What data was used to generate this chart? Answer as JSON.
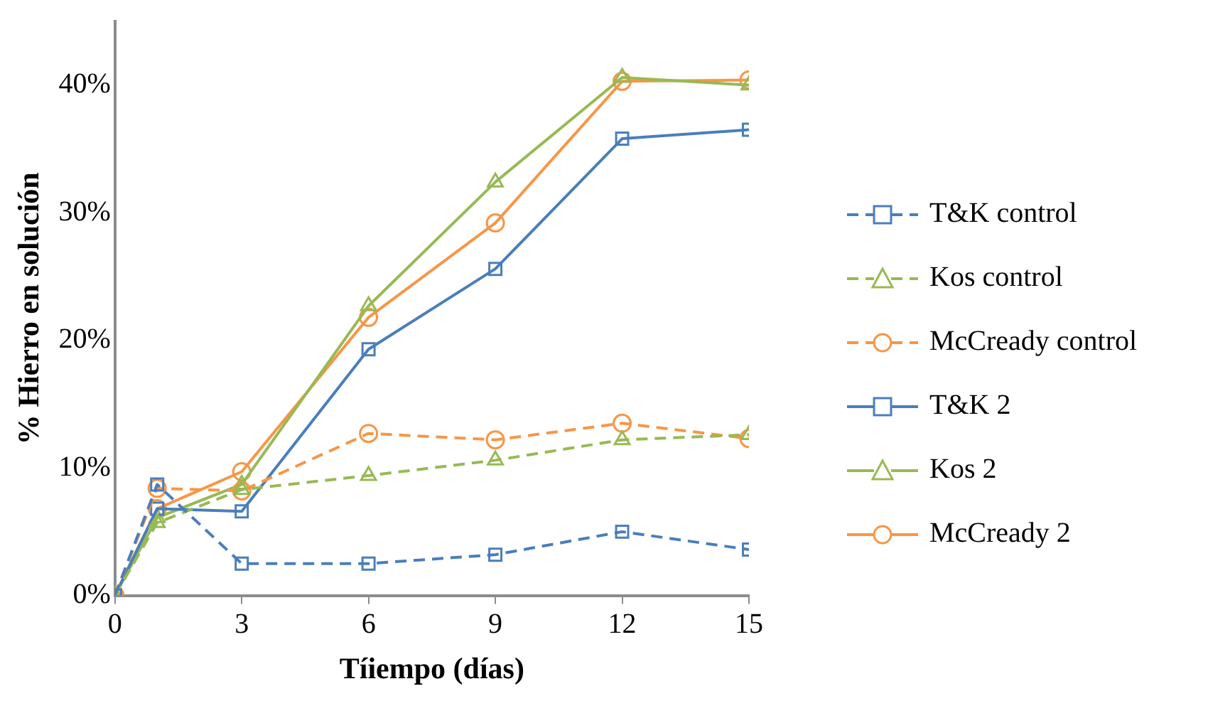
{
  "chart_data": {
    "type": "line",
    "xlabel": "Tíiempo (días)",
    "ylabel": "% Hierro en solución",
    "x": [
      0,
      1,
      3,
      6,
      9,
      12,
      15
    ],
    "xlim": [
      0,
      15
    ],
    "xticks": [
      0,
      3,
      6,
      9,
      12,
      15
    ],
    "ylim": [
      0,
      45
    ],
    "yticks": [
      {
        "value": 0,
        "label": "0%"
      },
      {
        "value": 10,
        "label": "10%"
      },
      {
        "value": 20,
        "label": "20%"
      },
      {
        "value": 30,
        "label": "30%"
      },
      {
        "value": 40,
        "label": "40%"
      }
    ],
    "grid": false,
    "legend": "right",
    "series": [
      {
        "name": "T&K control",
        "color": "#4a7ebb",
        "marker": "square",
        "line_style": "dashed",
        "values": [
          0,
          8.7,
          2.5,
          2.5,
          3.2,
          5.0,
          3.6
        ]
      },
      {
        "name": "Kos control",
        "color": "#98b954",
        "marker": "triangle",
        "line_style": "dashed",
        "values": [
          0,
          5.7,
          8.3,
          9.4,
          10.6,
          12.2,
          12.6
        ]
      },
      {
        "name": "McCready control",
        "color": "#f79646",
        "marker": "circle",
        "line_style": "dashed",
        "values": [
          0,
          8.4,
          8.2,
          12.7,
          12.2,
          13.5,
          12.3
        ]
      },
      {
        "name": "T&K 2",
        "color": "#4a7ebb",
        "marker": "square",
        "line_style": "solid",
        "values": [
          0,
          6.8,
          6.6,
          19.3,
          25.6,
          35.8,
          36.5
        ]
      },
      {
        "name": "Kos 2",
        "color": "#98b954",
        "marker": "triangle",
        "line_style": "solid",
        "values": [
          0,
          6.1,
          8.7,
          22.7,
          32.4,
          40.6,
          40.0
        ]
      },
      {
        "name": "McCready 2",
        "color": "#f79646",
        "marker": "circle",
        "line_style": "solid",
        "values": [
          0,
          6.8,
          9.7,
          21.8,
          29.2,
          40.3,
          40.4
        ]
      }
    ]
  }
}
